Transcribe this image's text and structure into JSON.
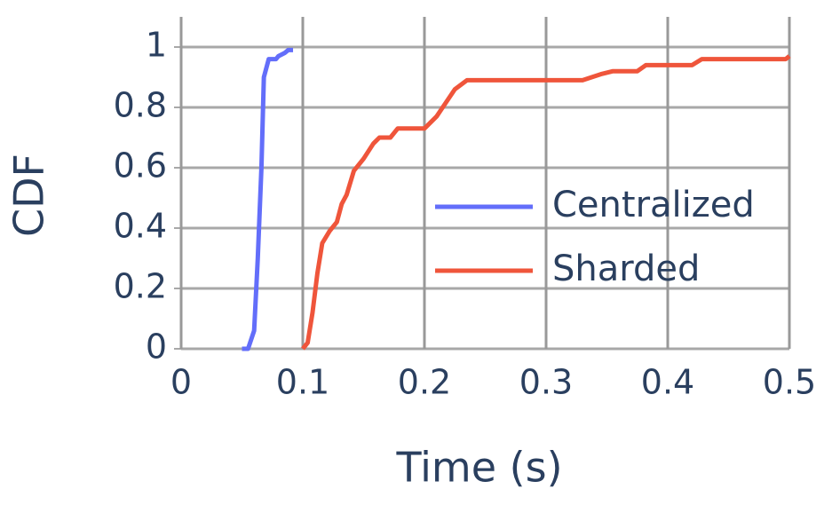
{
  "chart_data": {
    "type": "line",
    "x_label": "Time (s)",
    "y_label": "CDF",
    "xlim": [
      0,
      0.5
    ],
    "ylim": [
      0,
      1.1
    ],
    "xticks": [
      0,
      0.1,
      0.2,
      0.3,
      0.4,
      0.5
    ],
    "yticks": [
      0,
      0.2,
      0.4,
      0.6,
      0.8,
      1
    ],
    "grid": true,
    "legend_position": "right",
    "series": [
      {
        "name": "Centralized",
        "color": "#636efa",
        "x": [
          0.05,
          0.055,
          0.06,
          0.063,
          0.066,
          0.068,
          0.07,
          0.072,
          0.078,
          0.08,
          0.085,
          0.088,
          0.092
        ],
        "values": [
          0,
          0,
          0.06,
          0.3,
          0.6,
          0.9,
          0.93,
          0.96,
          0.96,
          0.97,
          0.98,
          0.99,
          0.99
        ]
      },
      {
        "name": "Sharded",
        "color": "#ef553b",
        "x": [
          0.1,
          0.104,
          0.108,
          0.112,
          0.116,
          0.122,
          0.128,
          0.132,
          0.136,
          0.142,
          0.15,
          0.158,
          0.163,
          0.172,
          0.178,
          0.2,
          0.21,
          0.215,
          0.225,
          0.235,
          0.33,
          0.345,
          0.355,
          0.375,
          0.382,
          0.42,
          0.428,
          0.497,
          0.5
        ],
        "values": [
          0,
          0.02,
          0.12,
          0.25,
          0.35,
          0.39,
          0.42,
          0.48,
          0.51,
          0.59,
          0.63,
          0.68,
          0.7,
          0.7,
          0.73,
          0.73,
          0.77,
          0.8,
          0.86,
          0.89,
          0.89,
          0.91,
          0.92,
          0.92,
          0.94,
          0.94,
          0.96,
          0.96,
          0.97
        ]
      }
    ]
  }
}
